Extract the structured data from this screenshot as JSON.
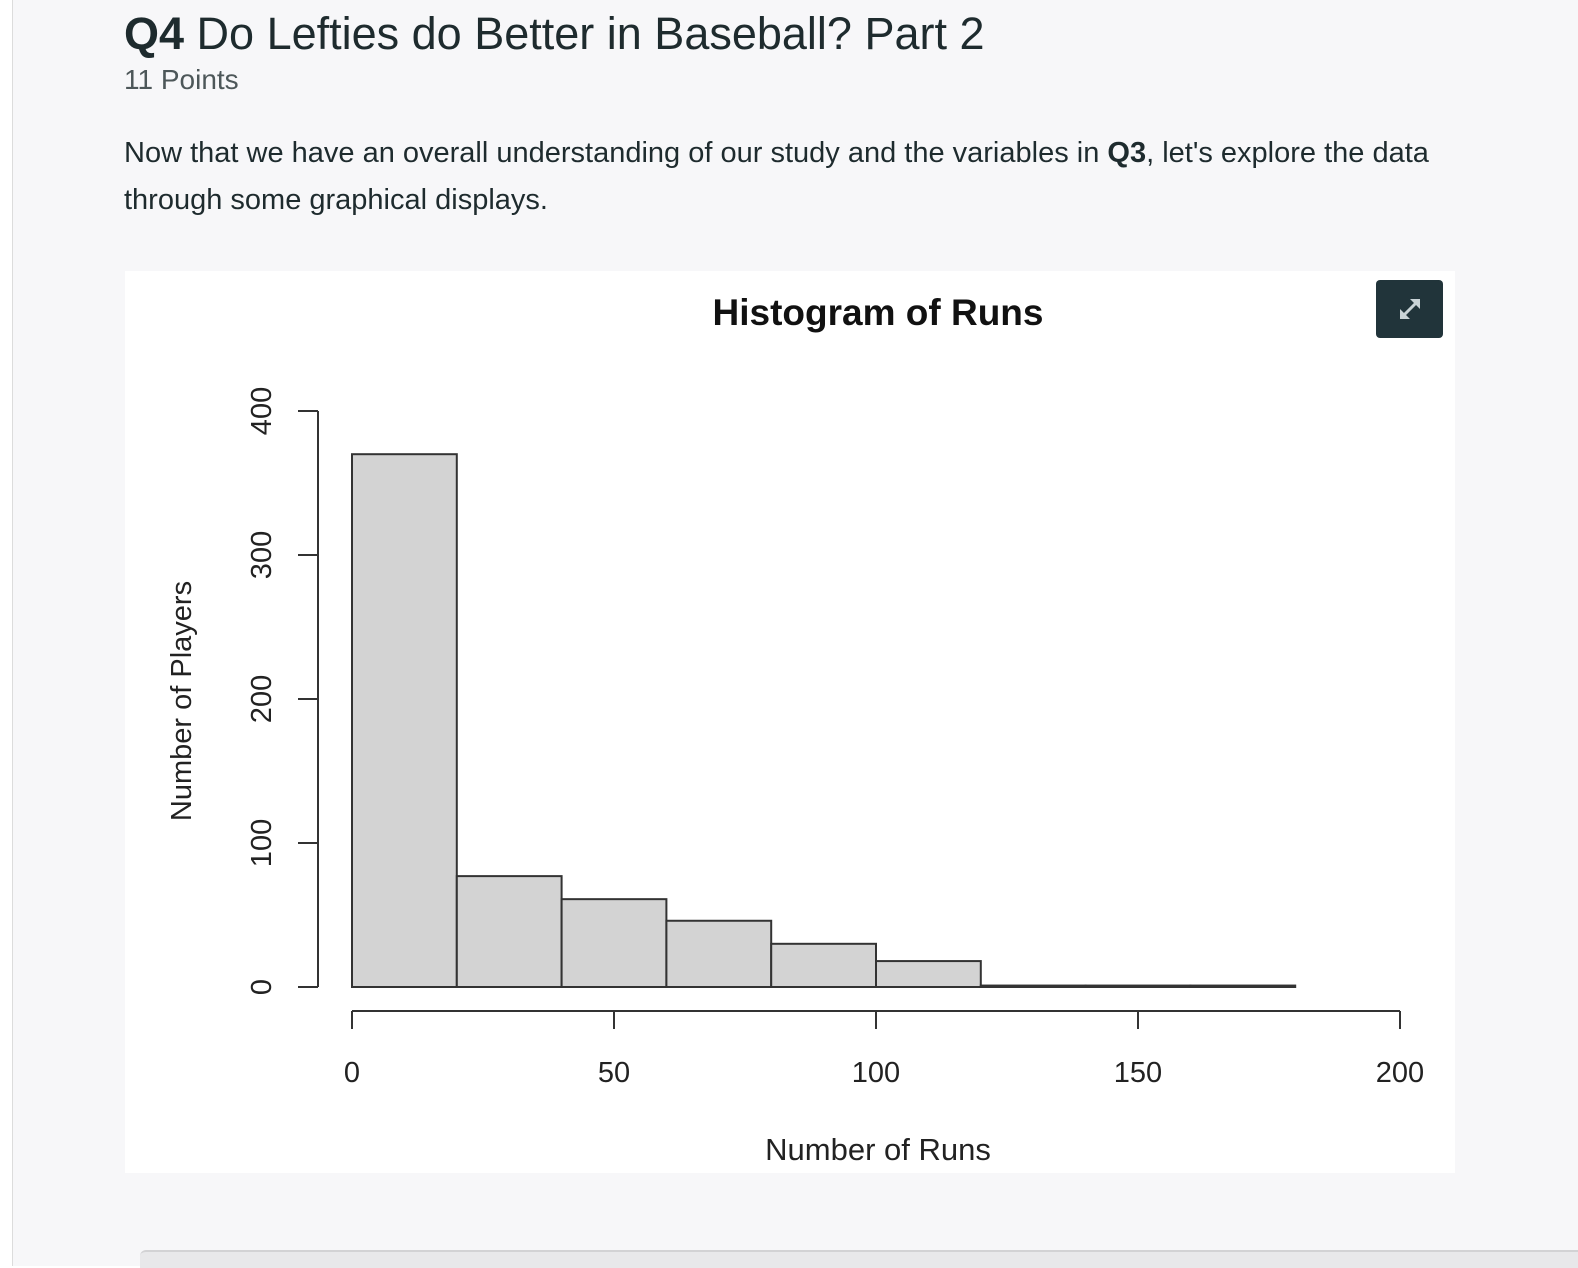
{
  "question": {
    "number": "Q4",
    "title": "Do Lefties do Better in Baseball? Part 2",
    "points": "11 Points",
    "body_before": "Now that we have an overall understanding of our study and the variables in ",
    "body_bold": "Q3",
    "body_after": ", let's explore the data through some graphical displays."
  },
  "figure": {
    "expand_icon": "expand-arrows-icon"
  },
  "chart_data": {
    "type": "bar",
    "title": "Histogram of Runs",
    "xlabel": "Number of Runs",
    "ylabel": "Number of Players",
    "bins": [
      [
        0,
        20
      ],
      [
        20,
        40
      ],
      [
        40,
        60
      ],
      [
        60,
        80
      ],
      [
        80,
        100
      ],
      [
        100,
        120
      ],
      [
        120,
        140
      ],
      [
        140,
        160
      ],
      [
        160,
        180
      ]
    ],
    "values": [
      370,
      77,
      61,
      46,
      30,
      18,
      1,
      1,
      1
    ],
    "xlim": [
      0,
      200
    ],
    "ylim": [
      0,
      400
    ],
    "x_ticks": [
      "0",
      "50",
      "100",
      "150",
      "200"
    ],
    "y_ticks": [
      "0",
      "100",
      "200",
      "300",
      "400"
    ],
    "bar_color": "#d3d3d3",
    "grid": false
  }
}
